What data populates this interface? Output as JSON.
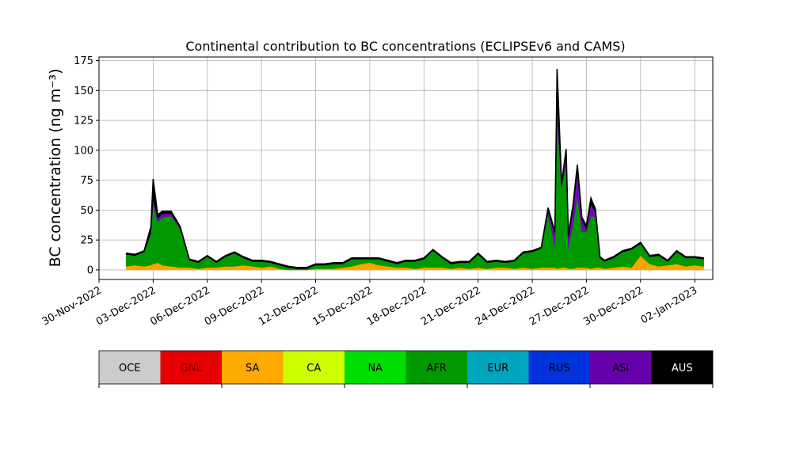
{
  "chart_data": {
    "type": "area",
    "title": "Continental contribution to BC concentrations (ECLIPSEv6 and CAMS)",
    "ylabel": "BC concentration (ng m⁻³)",
    "xlabel": "",
    "ylim": [
      -8,
      178
    ],
    "xlim": [
      "2022-11-30T00:00",
      "2023-01-03T00:00"
    ],
    "grid": true,
    "legend_placement": "bottom colorbar",
    "yticks": [
      0,
      25,
      50,
      75,
      100,
      125,
      150,
      175
    ],
    "xticks": [
      "30-Nov-2022",
      "03-Dec-2022",
      "06-Dec-2022",
      "09-Dec-2022",
      "12-Dec-2022",
      "15-Dec-2022",
      "18-Dec-2022",
      "21-Dec-2022",
      "24-Dec-2022",
      "27-Dec-2022",
      "30-Dec-2022",
      "02-Jan-2023"
    ],
    "xtick_dates": [
      "2022-11-30",
      "2022-12-03",
      "2022-12-06",
      "2022-12-09",
      "2022-12-12",
      "2022-12-15",
      "2022-12-18",
      "2022-12-21",
      "2022-12-24",
      "2022-12-27",
      "2022-12-30",
      "2023-01-02"
    ],
    "x": [
      "2022-12-01T12:00",
      "2022-12-02T00:00",
      "2022-12-02T12:00",
      "2022-12-02T21:00",
      "2022-12-03T00:00",
      "2022-12-03T06:00",
      "2022-12-03T12:00",
      "2022-12-04T00:00",
      "2022-12-04T12:00",
      "2022-12-05T00:00",
      "2022-12-05T12:00",
      "2022-12-06T00:00",
      "2022-12-06T12:00",
      "2022-12-07T00:00",
      "2022-12-07T12:00",
      "2022-12-08T00:00",
      "2022-12-08T12:00",
      "2022-12-09T00:00",
      "2022-12-09T12:00",
      "2022-12-10T00:00",
      "2022-12-10T12:00",
      "2022-12-11T00:00",
      "2022-12-11T12:00",
      "2022-12-12T00:00",
      "2022-12-12T12:00",
      "2022-12-13T00:00",
      "2022-12-13T12:00",
      "2022-12-14T00:00",
      "2022-12-14T12:00",
      "2022-12-15T00:00",
      "2022-12-15T12:00",
      "2022-12-16T00:00",
      "2022-12-16T12:00",
      "2022-12-17T00:00",
      "2022-12-17T12:00",
      "2022-12-18T00:00",
      "2022-12-18T12:00",
      "2022-12-19T00:00",
      "2022-12-19T12:00",
      "2022-12-20T00:00",
      "2022-12-20T12:00",
      "2022-12-21T00:00",
      "2022-12-21T12:00",
      "2022-12-22T00:00",
      "2022-12-22T12:00",
      "2022-12-23T00:00",
      "2022-12-23T12:00",
      "2022-12-24T00:00",
      "2022-12-24T12:00",
      "2022-12-24T21:00",
      "2022-12-25T06:00",
      "2022-12-25T09:00",
      "2022-12-25T15:00",
      "2022-12-25T21:00",
      "2022-12-26T00:00",
      "2022-12-26T06:00",
      "2022-12-26T12:00",
      "2022-12-26T18:00",
      "2022-12-27T00:00",
      "2022-12-27T06:00",
      "2022-12-27T12:00",
      "2022-12-27T18:00",
      "2022-12-28T00:00",
      "2022-12-28T12:00",
      "2022-12-29T00:00",
      "2022-12-29T12:00",
      "2022-12-30T00:00",
      "2022-12-30T12:00",
      "2022-12-31T00:00",
      "2022-12-31T12:00",
      "2023-01-01T00:00",
      "2023-01-01T12:00",
      "2023-01-02T00:00",
      "2023-01-02T12:00"
    ],
    "series": [
      {
        "name": "SA",
        "color": "#FFA500",
        "values": [
          3,
          4,
          3,
          4,
          5,
          6,
          4,
          3,
          2,
          2,
          1,
          2,
          2,
          3,
          3,
          4,
          3,
          2,
          3,
          1,
          0,
          0,
          0,
          1,
          1,
          1,
          2,
          3,
          5,
          6,
          4,
          3,
          2,
          2,
          1,
          2,
          2,
          2,
          1,
          2,
          1,
          2,
          1,
          2,
          2,
          1,
          2,
          1,
          2,
          2,
          2,
          1,
          2,
          2,
          1,
          1,
          2,
          2,
          2,
          1,
          2,
          2,
          1,
          2,
          3,
          2,
          12,
          5,
          3,
          4,
          5,
          3,
          4,
          3
        ]
      },
      {
        "name": "AFR",
        "color": "#009900",
        "values": [
          10,
          8,
          12,
          26,
          50,
          34,
          40,
          42,
          32,
          6,
          5,
          9,
          4,
          8,
          11,
          6,
          4,
          5,
          3,
          3,
          2,
          1,
          1,
          3,
          3,
          4,
          3,
          6,
          4,
          3,
          5,
          4,
          3,
          5,
          6,
          7,
          14,
          8,
          4,
          4,
          5,
          11,
          5,
          5,
          4,
          6,
          12,
          14,
          16,
          45,
          18,
          126,
          67,
          88,
          18,
          36,
          60,
          30,
          30,
          44,
          42,
          8,
          6,
          8,
          12,
          15,
          10,
          6,
          9,
          3,
          10,
          7,
          6,
          6
        ]
      },
      {
        "name": "ASI",
        "color": "#6A0DAD",
        "values": [
          0,
          0,
          0,
          1,
          5,
          3,
          3,
          2,
          1,
          0,
          0,
          0,
          0,
          0,
          0,
          0,
          0,
          0,
          0,
          0,
          0,
          0,
          0,
          0,
          0,
          0,
          0,
          0,
          0,
          0,
          0,
          0,
          0,
          0,
          0,
          0,
          0,
          0,
          0,
          0,
          0,
          0,
          0,
          0,
          0,
          0,
          0,
          0,
          0,
          2,
          10,
          14,
          1,
          7,
          8,
          12,
          20,
          10,
          2,
          10,
          4,
          0,
          0,
          0,
          0,
          0,
          0,
          0,
          0,
          0,
          0,
          0,
          0,
          0
        ]
      },
      {
        "name": "AUS",
        "color": "#000000",
        "values": [
          1,
          1,
          1,
          5,
          16,
          3,
          2,
          2,
          1,
          1,
          1,
          1,
          1,
          1,
          1,
          1,
          1,
          1,
          1,
          1,
          1,
          1,
          1,
          1,
          1,
          1,
          1,
          1,
          1,
          1,
          1,
          1,
          1,
          1,
          1,
          1,
          1,
          1,
          1,
          1,
          1,
          1,
          1,
          1,
          1,
          1,
          1,
          1,
          1,
          3,
          2,
          27,
          2,
          4,
          3,
          4,
          6,
          2,
          3,
          5,
          3,
          1,
          1,
          1,
          1,
          1,
          1,
          1,
          1,
          1,
          1,
          1,
          1,
          1
        ]
      }
    ],
    "legend": [
      {
        "name": "OCE",
        "color": "#CCCCCC",
        "text_color": "#000000"
      },
      {
        "name": "GNL",
        "color": "#E60000",
        "text_color": "#7a0000"
      },
      {
        "name": "SA",
        "color": "#FFAA00",
        "text_color": "#000000"
      },
      {
        "name": "CA",
        "color": "#CCFF00",
        "text_color": "#000000"
      },
      {
        "name": "NA",
        "color": "#00DD00",
        "text_color": "#000000"
      },
      {
        "name": "AFR",
        "color": "#009900",
        "text_color": "#000000"
      },
      {
        "name": "EUR",
        "color": "#00A5BE",
        "text_color": "#000000"
      },
      {
        "name": "RUS",
        "color": "#0033DD",
        "text_color": "#000000"
      },
      {
        "name": "ASI",
        "color": "#6600AA",
        "text_color": "#000000"
      },
      {
        "name": "AUS",
        "color": "#000000",
        "text_color": "#ffffff"
      }
    ]
  }
}
